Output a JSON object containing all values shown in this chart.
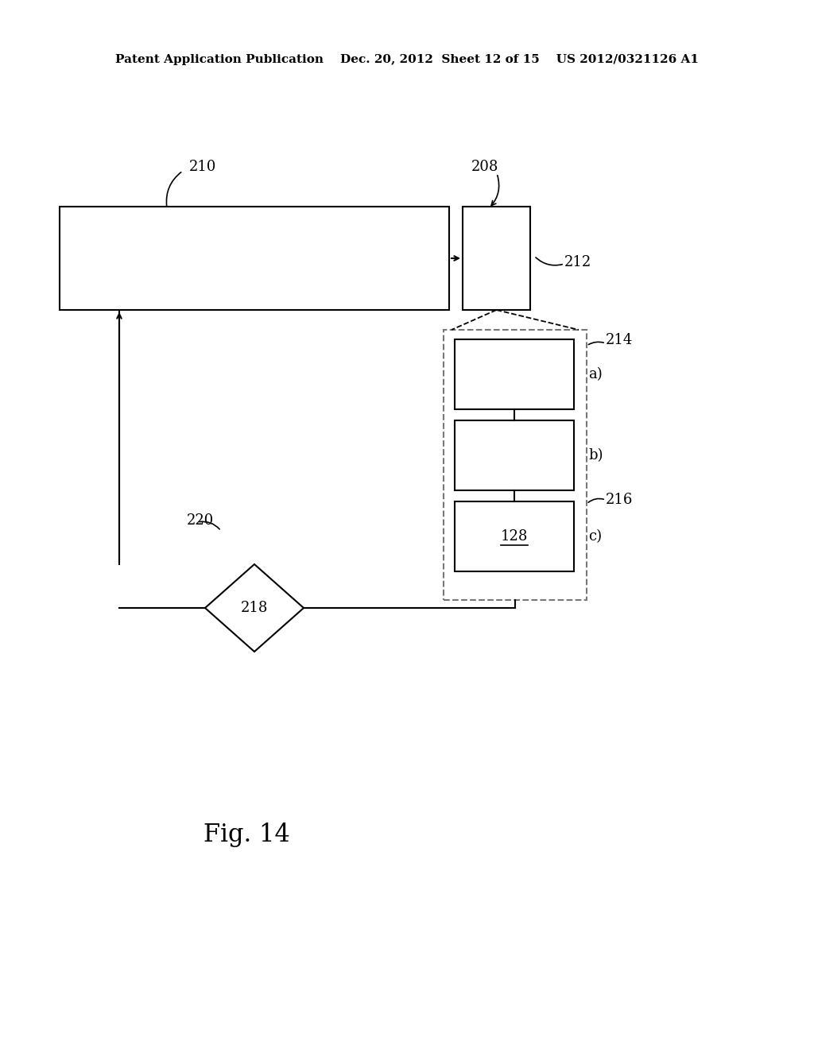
{
  "bg_color": "#ffffff",
  "header_text": "Patent Application Publication    Dec. 20, 2012  Sheet 12 of 15    US 2012/0321126 A1",
  "header_fontsize": 11,
  "fig_label": "Fig. 14",
  "fig_label_fontsize": 22,
  "label_210": "210",
  "label_208": "208",
  "label_212": "212",
  "label_214": "214",
  "label_216": "216",
  "label_218": "218",
  "label_220": "220",
  "label_128": "128",
  "label_a": "a)",
  "label_b": "b)",
  "label_c": "c)",
  "box_color": "#000000",
  "line_color": "#000000",
  "text_color": "#000000",
  "dashed_color": "#777777",
  "arrow_color": "#000000"
}
